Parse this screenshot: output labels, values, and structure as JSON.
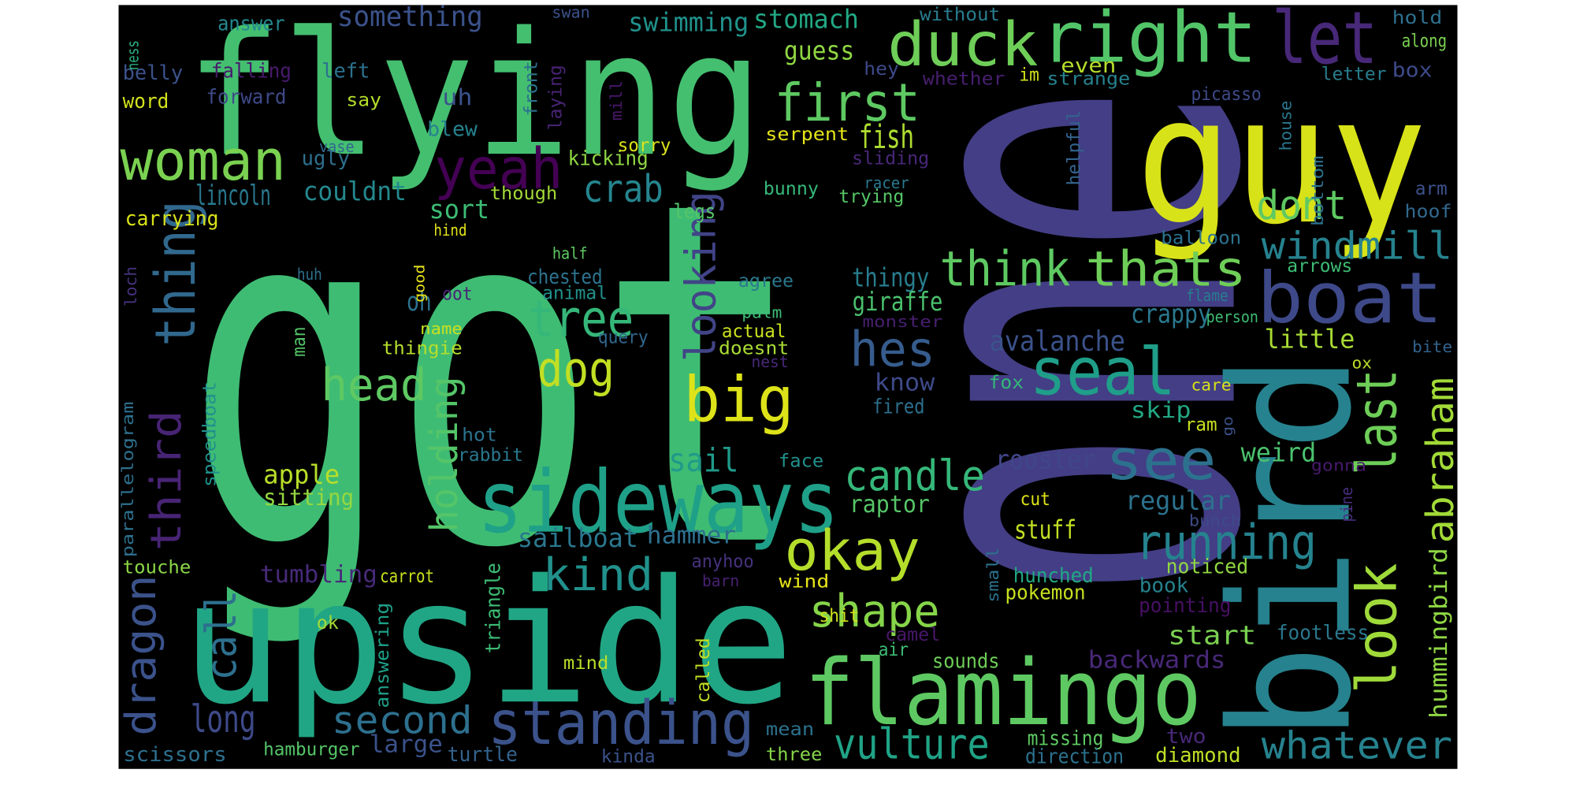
{
  "chart_data": {
    "type": "wordcloud",
    "background": "#000000",
    "words": [
      {
        "text": "got",
        "color": "#3fbc73"
      },
      {
        "text": "one",
        "color": "#433e85"
      },
      {
        "text": "flying",
        "color": "#44bf70"
      },
      {
        "text": "upside",
        "color": "#21a685"
      },
      {
        "text": "bird",
        "color": "#26828e"
      },
      {
        "text": "guy",
        "color": "#d8e219"
      },
      {
        "text": "sideways",
        "color": "#1fa088"
      },
      {
        "text": "flamingo",
        "color": "#5ec962"
      },
      {
        "text": "standing",
        "color": "#3b528b"
      },
      {
        "text": "duck",
        "color": "#6ece58"
      },
      {
        "text": "right",
        "color": "#52c569"
      },
      {
        "text": "let",
        "color": "#482878"
      },
      {
        "text": "woman",
        "color": "#7ad151"
      },
      {
        "text": "first",
        "color": "#5ec962"
      },
      {
        "text": "yeah",
        "color": "#440154"
      },
      {
        "text": "boat",
        "color": "#3e4989"
      },
      {
        "text": "seal",
        "color": "#1f9e89"
      },
      {
        "text": "big",
        "color": "#dde318"
      },
      {
        "text": "thing",
        "color": "#31688e"
      },
      {
        "text": "tree",
        "color": "#35b779"
      },
      {
        "text": "dog",
        "color": "#c2df23"
      },
      {
        "text": "head",
        "color": "#5ec962"
      },
      {
        "text": "see",
        "color": "#2c728e"
      },
      {
        "text": "okay",
        "color": "#b5de2b"
      },
      {
        "text": "kind",
        "color": "#21918c"
      },
      {
        "text": "shape",
        "color": "#86d549"
      },
      {
        "text": "running",
        "color": "#25838e"
      },
      {
        "text": "look",
        "color": "#9fda3a"
      },
      {
        "text": "last",
        "color": "#6ece58"
      },
      {
        "text": "abraham",
        "color": "#a2da37"
      },
      {
        "text": "hummingbird",
        "color": "#8fd744"
      },
      {
        "text": "third",
        "color": "#482475"
      },
      {
        "text": "call",
        "color": "#2d708e"
      },
      {
        "text": "dragon",
        "color": "#3b528b"
      },
      {
        "text": "long",
        "color": "#3e4a89"
      },
      {
        "text": "second",
        "color": "#2d708e"
      },
      {
        "text": "vulture",
        "color": "#20a386"
      },
      {
        "text": "whatever",
        "color": "#26828e"
      },
      {
        "text": "windmill",
        "color": "#26828e"
      },
      {
        "text": "thats",
        "color": "#6ece58"
      },
      {
        "text": "think",
        "color": "#5ec962"
      },
      {
        "text": "hes",
        "color": "#365c8d"
      },
      {
        "text": "dont",
        "color": "#5ec962"
      },
      {
        "text": "crab",
        "color": "#25858e"
      },
      {
        "text": "looking",
        "color": "#414487"
      },
      {
        "text": "holding",
        "color": "#54c568"
      },
      {
        "text": "candle",
        "color": "#35b779"
      },
      {
        "text": "sail",
        "color": "#1f9a8a"
      },
      {
        "text": "fish",
        "color": "#addc30"
      },
      {
        "text": "guess",
        "color": "#90d743"
      },
      {
        "text": "something",
        "color": "#3b528b"
      },
      {
        "text": "swimming",
        "color": "#20928c"
      },
      {
        "text": "stomach",
        "color": "#22a884"
      },
      {
        "text": "lincoln",
        "color": "#2a788e"
      },
      {
        "text": "couldnt",
        "color": "#23898e"
      },
      {
        "text": "sort",
        "color": "#3dbc74"
      },
      {
        "text": "oh",
        "color": "#2c728e"
      },
      {
        "text": "apple",
        "color": "#b8de29"
      },
      {
        "text": "sitting",
        "color": "#95d840"
      },
      {
        "text": "thingy",
        "color": "#287d8e"
      },
      {
        "text": "giraffe",
        "color": "#4ac16d"
      },
      {
        "text": "avalanche",
        "color": "#3b528b"
      },
      {
        "text": "crappy",
        "color": "#2a788e"
      },
      {
        "text": "little",
        "color": "#a8db34"
      },
      {
        "text": "know",
        "color": "#3e4a89"
      },
      {
        "text": "fired",
        "color": "#2d708e"
      },
      {
        "text": "skip",
        "color": "#22a884"
      },
      {
        "text": "ram",
        "color": "#c8e020"
      },
      {
        "text": "fox",
        "color": "#35b779"
      },
      {
        "text": "weird",
        "color": "#4ac16d"
      },
      {
        "text": "rooster",
        "color": "#404688"
      },
      {
        "text": "regular",
        "color": "#2c728e"
      },
      {
        "text": "raptor",
        "color": "#56c667"
      },
      {
        "text": "hammer",
        "color": "#2d708e"
      },
      {
        "text": "sailboat",
        "color": "#2a788e"
      },
      {
        "text": "stuff",
        "color": "#c2df23"
      },
      {
        "text": "hunched",
        "color": "#22a884"
      },
      {
        "text": "pokemon",
        "color": "#c8e020"
      },
      {
        "text": "start",
        "color": "#7ad151"
      },
      {
        "text": "backwards",
        "color": "#482878"
      },
      {
        "text": "footless",
        "color": "#2a788e"
      },
      {
        "text": "noticed",
        "color": "#90d743"
      },
      {
        "text": "book",
        "color": "#26828e"
      },
      {
        "text": "pointing",
        "color": "#471063"
      },
      {
        "text": "tumbling",
        "color": "#472a7a"
      },
      {
        "text": "carrot",
        "color": "#cae11f"
      },
      {
        "text": "touche",
        "color": "#8bd646"
      },
      {
        "text": "scissors",
        "color": "#2d708e"
      },
      {
        "text": "hamburger",
        "color": "#54c568"
      },
      {
        "text": "large",
        "color": "#3b528b"
      },
      {
        "text": "turtle",
        "color": "#33638d"
      },
      {
        "text": "kinda",
        "color": "#3b528b"
      },
      {
        "text": "three",
        "color": "#86d549"
      },
      {
        "text": "mean",
        "color": "#2c728e"
      },
      {
        "text": "missing",
        "color": "#5ec962"
      },
      {
        "text": "direction",
        "color": "#2c728e"
      },
      {
        "text": "two",
        "color": "#482878"
      },
      {
        "text": "diamond",
        "color": "#bddf26"
      },
      {
        "text": "sounds",
        "color": "#6ece58"
      },
      {
        "text": "air",
        "color": "#3dbc74"
      },
      {
        "text": "camel",
        "color": "#481769"
      },
      {
        "text": "shit",
        "color": "#d0e11c"
      },
      {
        "text": "wind",
        "color": "#e5e419"
      },
      {
        "text": "barn",
        "color": "#482071"
      },
      {
        "text": "anyhoo",
        "color": "#46327e"
      },
      {
        "text": "mind",
        "color": "#b8de29"
      },
      {
        "text": "ok",
        "color": "#a5db36"
      },
      {
        "text": "cut",
        "color": "#dde318"
      },
      {
        "text": "face",
        "color": "#21918c"
      },
      {
        "text": "carrying",
        "color": "#d8e219"
      },
      {
        "text": "word",
        "color": "#d2e21b"
      },
      {
        "text": "belly",
        "color": "#3b528b"
      },
      {
        "text": "falling",
        "color": "#481a6c"
      },
      {
        "text": "forward",
        "color": "#3e4a89"
      },
      {
        "text": "left",
        "color": "#2c728e"
      },
      {
        "text": "say",
        "color": "#b5de2b"
      },
      {
        "text": "answer",
        "color": "#23898e"
      },
      {
        "text": "ness",
        "color": "#29af7f"
      },
      {
        "text": "uh",
        "color": "#3b528b"
      },
      {
        "text": "blew",
        "color": "#26828e"
      },
      {
        "text": "ugly",
        "color": "#2d708e"
      },
      {
        "text": "vase",
        "color": "#31688e"
      },
      {
        "text": "kicking",
        "color": "#8fd744"
      },
      {
        "text": "sorry",
        "color": "#dde318"
      },
      {
        "text": "though",
        "color": "#a2da37"
      },
      {
        "text": "legs",
        "color": "#56c667"
      },
      {
        "text": "hind",
        "color": "#e5e419"
      },
      {
        "text": "half",
        "color": "#5ec962"
      },
      {
        "text": "chested",
        "color": "#2c728e"
      },
      {
        "text": "animal",
        "color": "#21918c"
      },
      {
        "text": "good",
        "color": "#e7e419"
      },
      {
        "text": "oot",
        "color": "#482575"
      },
      {
        "text": "huh",
        "color": "#2d708e"
      },
      {
        "text": "man",
        "color": "#54c568"
      },
      {
        "text": "name",
        "color": "#c8e020"
      },
      {
        "text": "thingie",
        "color": "#b5de2b"
      },
      {
        "text": "actual",
        "color": "#cae11f"
      },
      {
        "text": "query",
        "color": "#31688e"
      },
      {
        "text": "palm",
        "color": "#3dbc74"
      },
      {
        "text": "agree",
        "color": "#2a788e"
      },
      {
        "text": "doesnt",
        "color": "#a8db34"
      },
      {
        "text": "nest",
        "color": "#482878"
      },
      {
        "text": "monster",
        "color": "#481f70"
      },
      {
        "text": "hot",
        "color": "#2c728e"
      },
      {
        "text": "rabbit",
        "color": "#2a788e"
      },
      {
        "text": "triangle",
        "color": "#3dbc74"
      },
      {
        "text": "answering",
        "color": "#1fa088"
      },
      {
        "text": "called",
        "color": "#c2df23"
      },
      {
        "text": "small",
        "color": "#2c728e"
      },
      {
        "text": "speedboat",
        "color": "#21918c"
      },
      {
        "text": "parallelogram",
        "color": "#2d708e"
      },
      {
        "text": "loch",
        "color": "#46327e"
      },
      {
        "text": "front",
        "color": "#2c728e"
      },
      {
        "text": "laying",
        "color": "#482475"
      },
      {
        "text": "mill",
        "color": "#481769"
      },
      {
        "text": "swan",
        "color": "#3b528b"
      },
      {
        "text": "hey",
        "color": "#3e4a89"
      },
      {
        "text": "without",
        "color": "#287d8e"
      },
      {
        "text": "whether",
        "color": "#481f70"
      },
      {
        "text": "im",
        "color": "#d2e21b"
      },
      {
        "text": "even",
        "color": "#b5de2b"
      },
      {
        "text": "strange",
        "color": "#26828e"
      },
      {
        "text": "picasso",
        "color": "#3e4a89"
      },
      {
        "text": "hold",
        "color": "#2d708e"
      },
      {
        "text": "along",
        "color": "#7ad151"
      },
      {
        "text": "letter",
        "color": "#287d8e"
      },
      {
        "text": "box",
        "color": "#3e4a89"
      },
      {
        "text": "helpful",
        "color": "#33638d"
      },
      {
        "text": "house",
        "color": "#2a788e"
      },
      {
        "text": "bottom",
        "color": "#2c728e"
      },
      {
        "text": "arm",
        "color": "#3b528b"
      },
      {
        "text": "hoof",
        "color": "#31688e"
      },
      {
        "text": "serpent",
        "color": "#e5e419"
      },
      {
        "text": "sliding",
        "color": "#482878"
      },
      {
        "text": "racer",
        "color": "#2a788e"
      },
      {
        "text": "trying",
        "color": "#56c667"
      },
      {
        "text": "bunny",
        "color": "#35b779"
      },
      {
        "text": "balloon",
        "color": "#2c728e"
      },
      {
        "text": "arrows",
        "color": "#3dbc74"
      },
      {
        "text": "flame",
        "color": "#287d8e"
      },
      {
        "text": "person",
        "color": "#3dbc74"
      },
      {
        "text": "ox",
        "color": "#b8de29"
      },
      {
        "text": "bite",
        "color": "#33638d"
      },
      {
        "text": "care",
        "color": "#d8e219"
      },
      {
        "text": "go",
        "color": "#3b528b"
      },
      {
        "text": "gonna",
        "color": "#481a6c"
      },
      {
        "text": "pine",
        "color": "#472d7b"
      },
      {
        "text": "bunch",
        "color": "#3e4a89"
      }
    ]
  }
}
